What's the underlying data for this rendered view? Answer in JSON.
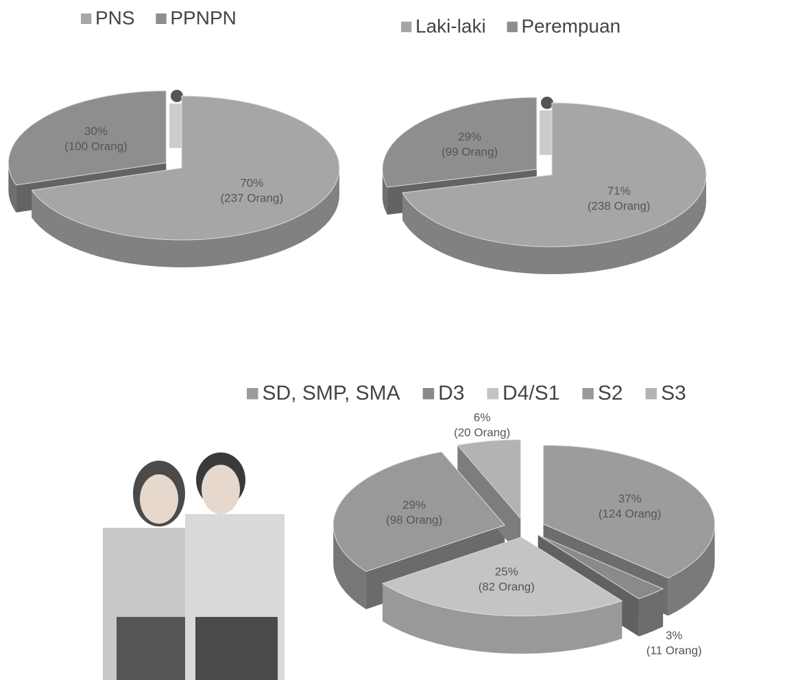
{
  "chart_data": [
    {
      "type": "pie",
      "categories": [
        "PNS",
        "PPNPN"
      ],
      "colors": [
        "#a6a6a6",
        "#8e8e8e"
      ],
      "values": [
        70,
        30
      ],
      "value_labels": [
        "70%",
        "30%"
      ],
      "count_labels": [
        "(237 Orang)",
        "(100 Orang)"
      ]
    },
    {
      "type": "pie",
      "categories": [
        "Laki-laki",
        "Perempuan"
      ],
      "colors": [
        "#a6a6a6",
        "#8e8e8e"
      ],
      "values": [
        71,
        29
      ],
      "value_labels": [
        "71%",
        "29%"
      ],
      "count_labels": [
        "(238 Orang)",
        "(99 Orang)"
      ]
    },
    {
      "type": "pie",
      "categories": [
        "SD, SMP, SMA",
        "D3",
        "D4/S1",
        "S2",
        "S3"
      ],
      "colors": [
        "#9c9c9c",
        "#8a8a8a",
        "#c4c4c4",
        "#999999",
        "#b3b3b3"
      ],
      "values": [
        37,
        3,
        25,
        29,
        6
      ],
      "value_labels": [
        "37%",
        "3%",
        "25%",
        "29%",
        "6%"
      ],
      "count_labels": [
        "(124 Orang)",
        "(11 Orang)",
        "(82 Orang)",
        "(98 Orang)",
        "(20 Orang)"
      ]
    }
  ]
}
